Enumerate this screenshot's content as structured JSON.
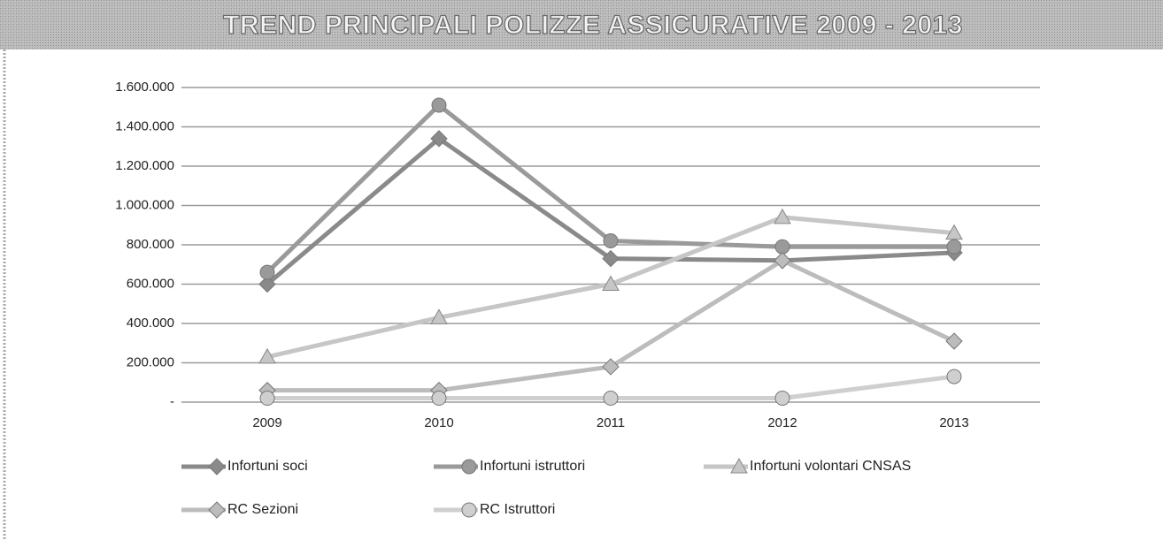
{
  "chart_data": {
    "type": "line",
    "title": "TREND PRINCIPALI POLIZZE ASSICURATIVE 2009 - 2013",
    "categories": [
      "2009",
      "2010",
      "2011",
      "2012",
      "2013"
    ],
    "series": [
      {
        "name": "Infortuni soci",
        "color": "#8a8a8a",
        "marker": "diamond",
        "values": [
          600000,
          1340000,
          730000,
          720000,
          760000
        ]
      },
      {
        "name": "Infortuni istruttori",
        "color": "#9a9a9a",
        "marker": "circle",
        "values": [
          660000,
          1510000,
          820000,
          790000,
          790000
        ]
      },
      {
        "name": "Infortuni volontari CNSAS",
        "color": "#c6c6c6",
        "marker": "triangle",
        "values": [
          230000,
          430000,
          600000,
          940000,
          860000
        ]
      },
      {
        "name": "RC Sezioni",
        "color": "#bcbcbc",
        "marker": "diamond",
        "values": [
          60000,
          60000,
          180000,
          720000,
          310000
        ]
      },
      {
        "name": "RC Istruttori",
        "color": "#cfcfcf",
        "marker": "circle",
        "values": [
          20000,
          20000,
          20000,
          20000,
          130000
        ]
      }
    ],
    "ylim": [
      0,
      1600000
    ],
    "yticks": [
      {
        "value": 0,
        "label": "-"
      },
      {
        "value": 200000,
        "label": "200.000"
      },
      {
        "value": 400000,
        "label": "400.000"
      },
      {
        "value": 600000,
        "label": "600.000"
      },
      {
        "value": 800000,
        "label": "800.000"
      },
      {
        "value": 1000000,
        "label": "1.000.000"
      },
      {
        "value": 1200000,
        "label": "1.200.000"
      },
      {
        "value": 1400000,
        "label": "1.400.000"
      },
      {
        "value": 1600000,
        "label": "1.600.000"
      }
    ],
    "grid": true,
    "legend": "bottom"
  }
}
